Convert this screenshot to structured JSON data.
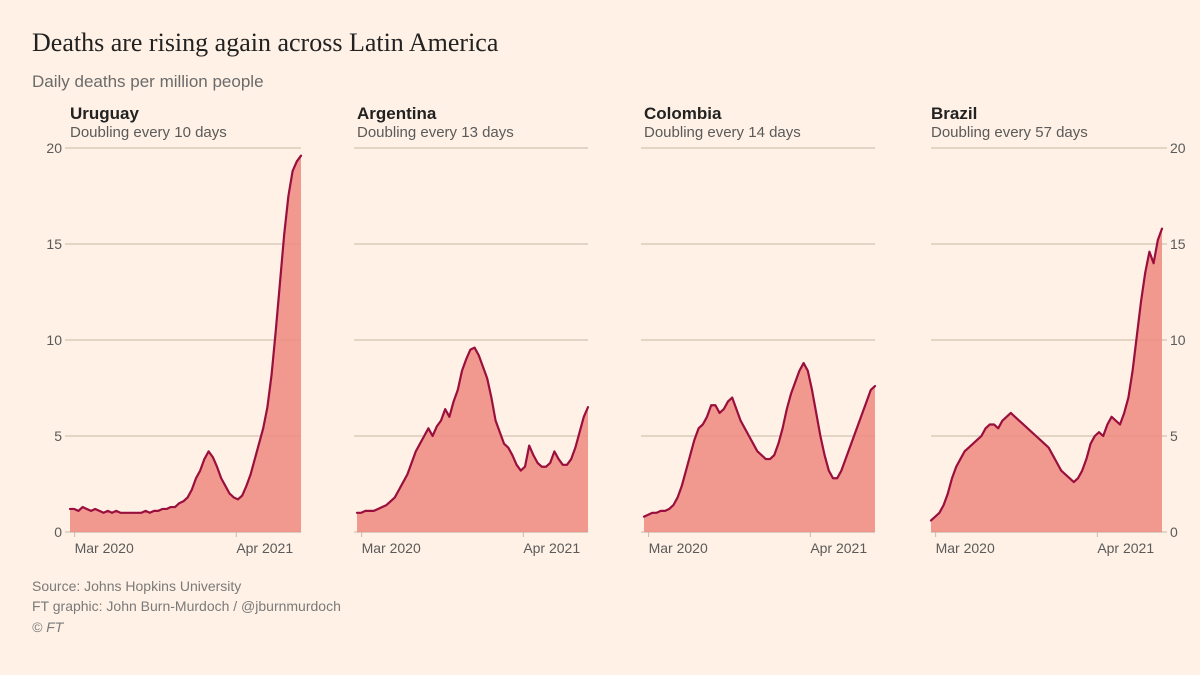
{
  "title": "Deaths are rising again across Latin America",
  "subtitle": "Daily deaths per million people",
  "layout": {
    "background_color": "#fff1e5",
    "grid_color": "#c9b8a8",
    "axis_text_color": "#5a5a5a",
    "title_color": "#222222",
    "title_fontsize": 26,
    "subtitle_fontsize": 17,
    "panel_title_fontsize": 17,
    "panel_sub_fontsize": 15,
    "tick_fontsize": 14,
    "footer_fontsize": 14,
    "y_axis_on_first_and_last": true
  },
  "series_style": {
    "line_color": "#990f3d",
    "line_width": 2.2,
    "fill_color": "#f08a80",
    "fill_opacity": 0.85
  },
  "axes": {
    "ylim": [
      0,
      20
    ],
    "yticks": [
      0,
      5,
      10,
      15,
      20
    ],
    "xticks": [
      "Mar 2020",
      "Apr 2021"
    ],
    "xtick_positions": [
      0.02,
      0.72
    ]
  },
  "panels": [
    {
      "name": "Uruguay",
      "sub": "Doubling every 10 days",
      "y_axis_side": "left",
      "data": [
        1.2,
        1.2,
        1.1,
        1.3,
        1.2,
        1.1,
        1.2,
        1.1,
        1.0,
        1.1,
        1.0,
        1.1,
        1.0,
        1.0,
        1.0,
        1.0,
        1.0,
        1.0,
        1.1,
        1.0,
        1.1,
        1.1,
        1.2,
        1.2,
        1.3,
        1.3,
        1.5,
        1.6,
        1.8,
        2.2,
        2.8,
        3.2,
        3.8,
        4.2,
        3.9,
        3.4,
        2.8,
        2.4,
        2.0,
        1.8,
        1.7,
        1.9,
        2.4,
        3.0,
        3.8,
        4.6,
        5.4,
        6.5,
        8.2,
        10.5,
        13.0,
        15.5,
        17.5,
        18.8,
        19.3,
        19.6
      ]
    },
    {
      "name": "Argentina",
      "sub": "Doubling every 13 days",
      "y_axis_side": "none",
      "data": [
        1.0,
        1.0,
        1.1,
        1.1,
        1.1,
        1.2,
        1.3,
        1.4,
        1.6,
        1.8,
        2.2,
        2.6,
        3.0,
        3.6,
        4.2,
        4.6,
        5.0,
        5.4,
        5.0,
        5.5,
        5.8,
        6.4,
        6.0,
        6.8,
        7.4,
        8.4,
        9.0,
        9.5,
        9.6,
        9.2,
        8.6,
        8.0,
        7.0,
        5.8,
        5.2,
        4.6,
        4.4,
        4.0,
        3.5,
        3.2,
        3.4,
        4.5,
        4.0,
        3.6,
        3.4,
        3.4,
        3.6,
        4.2,
        3.8,
        3.5,
        3.5,
        3.8,
        4.4,
        5.2,
        6.0,
        6.5
      ]
    },
    {
      "name": "Colombia",
      "sub": "Doubling every 14 days",
      "y_axis_side": "none",
      "data": [
        0.8,
        0.9,
        1.0,
        1.0,
        1.1,
        1.1,
        1.2,
        1.4,
        1.8,
        2.4,
        3.2,
        4.0,
        4.8,
        5.4,
        5.6,
        6.0,
        6.6,
        6.6,
        6.2,
        6.4,
        6.8,
        7.0,
        6.4,
        5.8,
        5.4,
        5.0,
        4.6,
        4.2,
        4.0,
        3.8,
        3.8,
        4.0,
        4.6,
        5.4,
        6.4,
        7.2,
        7.8,
        8.4,
        8.8,
        8.4,
        7.4,
        6.2,
        5.0,
        4.0,
        3.2,
        2.8,
        2.8,
        3.2,
        3.8,
        4.4,
        5.0,
        5.6,
        6.2,
        6.8,
        7.4,
        7.6
      ]
    },
    {
      "name": "Brazil",
      "sub": "Doubling every 57 days",
      "y_axis_side": "right",
      "data": [
        0.6,
        0.8,
        1.0,
        1.4,
        2.0,
        2.8,
        3.4,
        3.8,
        4.2,
        4.4,
        4.6,
        4.8,
        5.0,
        5.4,
        5.6,
        5.6,
        5.4,
        5.8,
        6.0,
        6.2,
        6.0,
        5.8,
        5.6,
        5.4,
        5.2,
        5.0,
        4.8,
        4.6,
        4.4,
        4.0,
        3.6,
        3.2,
        3.0,
        2.8,
        2.6,
        2.8,
        3.2,
        3.8,
        4.6,
        5.0,
        5.2,
        5.0,
        5.6,
        6.0,
        5.8,
        5.6,
        6.2,
        7.0,
        8.4,
        10.2,
        12.0,
        13.5,
        14.6,
        14.0,
        15.2,
        15.8
      ]
    }
  ],
  "footer": {
    "source": "Source: Johns Hopkins University",
    "credit": "FT graphic: John Burn-Murdoch / @jburnmurdoch",
    "copyright": "© FT"
  }
}
